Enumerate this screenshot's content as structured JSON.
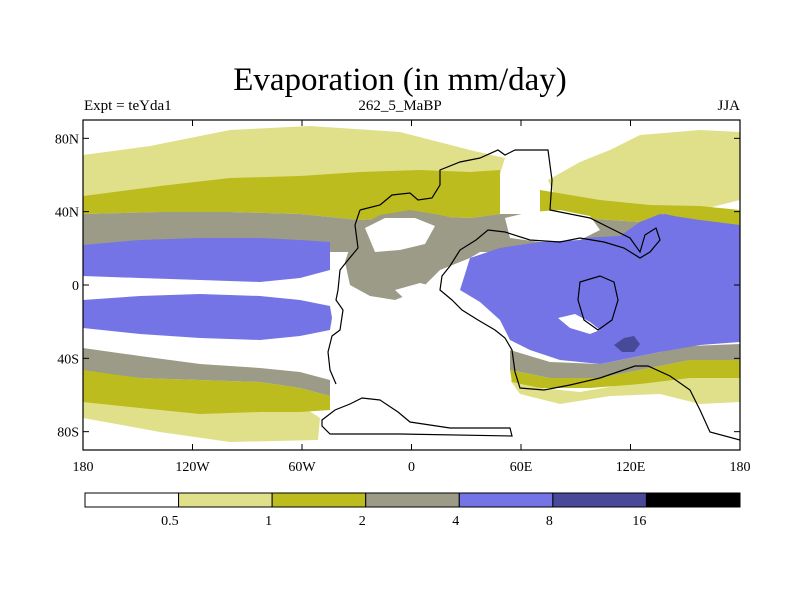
{
  "title": "Evaporation (in mm/day)",
  "subtitle_left": "Expt = teYda1",
  "subtitle_center": "262_5_MaBP",
  "subtitle_right": "JJA",
  "map": {
    "lon_range": [
      -180,
      180
    ],
    "lat_range": [
      -90,
      90
    ],
    "lat_ticks": [
      {
        "value": 80,
        "label": "80N"
      },
      {
        "value": 40,
        "label": "40N"
      },
      {
        "value": 0,
        "label": "0"
      },
      {
        "value": -40,
        "label": "40S"
      },
      {
        "value": -80,
        "label": "80S"
      }
    ],
    "lon_ticks": [
      {
        "value": -180,
        "label": "180"
      },
      {
        "value": -120,
        "label": "120W"
      },
      {
        "value": -60,
        "label": "60W"
      },
      {
        "value": 0,
        "label": "0"
      },
      {
        "value": 60,
        "label": "60E"
      },
      {
        "value": 120,
        "label": "120E"
      },
      {
        "value": 180,
        "label": "180"
      }
    ]
  },
  "legend": {
    "colors": [
      "#ffffff",
      "#e0e08a",
      "#bcbc1e",
      "#9b9b87",
      "#7474e6",
      "#494999",
      "#000000"
    ],
    "labels": [
      "0.5",
      "1",
      "2",
      "4",
      "8",
      "16"
    ]
  },
  "colors": {
    "c0": "#ffffff",
    "c1": "#e0e08a",
    "c2": "#bcbc1e",
    "c3": "#9b9b87",
    "c4": "#7474e6",
    "c5": "#494999",
    "coast": "#000000"
  }
}
